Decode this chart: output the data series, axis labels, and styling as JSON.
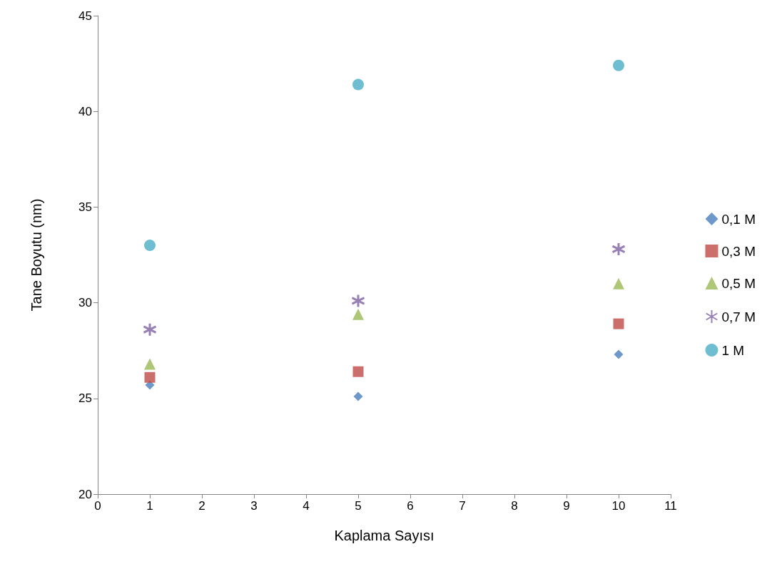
{
  "chart_data": {
    "type": "scatter",
    "xlabel": "Kaplama Sayısı",
    "ylabel": "Tane Boyutu (nm)",
    "xlim": [
      0,
      11
    ],
    "xticks": [
      0,
      1,
      2,
      3,
      4,
      5,
      6,
      7,
      8,
      9,
      10,
      11
    ],
    "ylim": [
      20,
      45
    ],
    "yticks": [
      20,
      25,
      30,
      35,
      40,
      45
    ],
    "grid": false,
    "legend": "right",
    "x": [
      1,
      5,
      10
    ],
    "series": [
      {
        "name": "0,1 M",
        "color": "#4a7ebb",
        "marker": "diamond",
        "values": [
          25.7,
          25.1,
          27.3
        ]
      },
      {
        "name": "0,3 M",
        "color": "#be4b48",
        "marker": "square",
        "values": [
          26.1,
          26.4,
          28.9
        ]
      },
      {
        "name": "0,5 M",
        "color": "#98b954",
        "marker": "triangle",
        "values": [
          26.8,
          29.4,
          31.0
        ]
      },
      {
        "name": "0,7 M",
        "color": "#7d60a0",
        "marker": "cross",
        "values": [
          28.6,
          30.1,
          32.8
        ]
      },
      {
        "name": "1 M",
        "color": "#4bacc6",
        "marker": "circle",
        "values": [
          33.0,
          41.4,
          42.4
        ]
      }
    ]
  }
}
